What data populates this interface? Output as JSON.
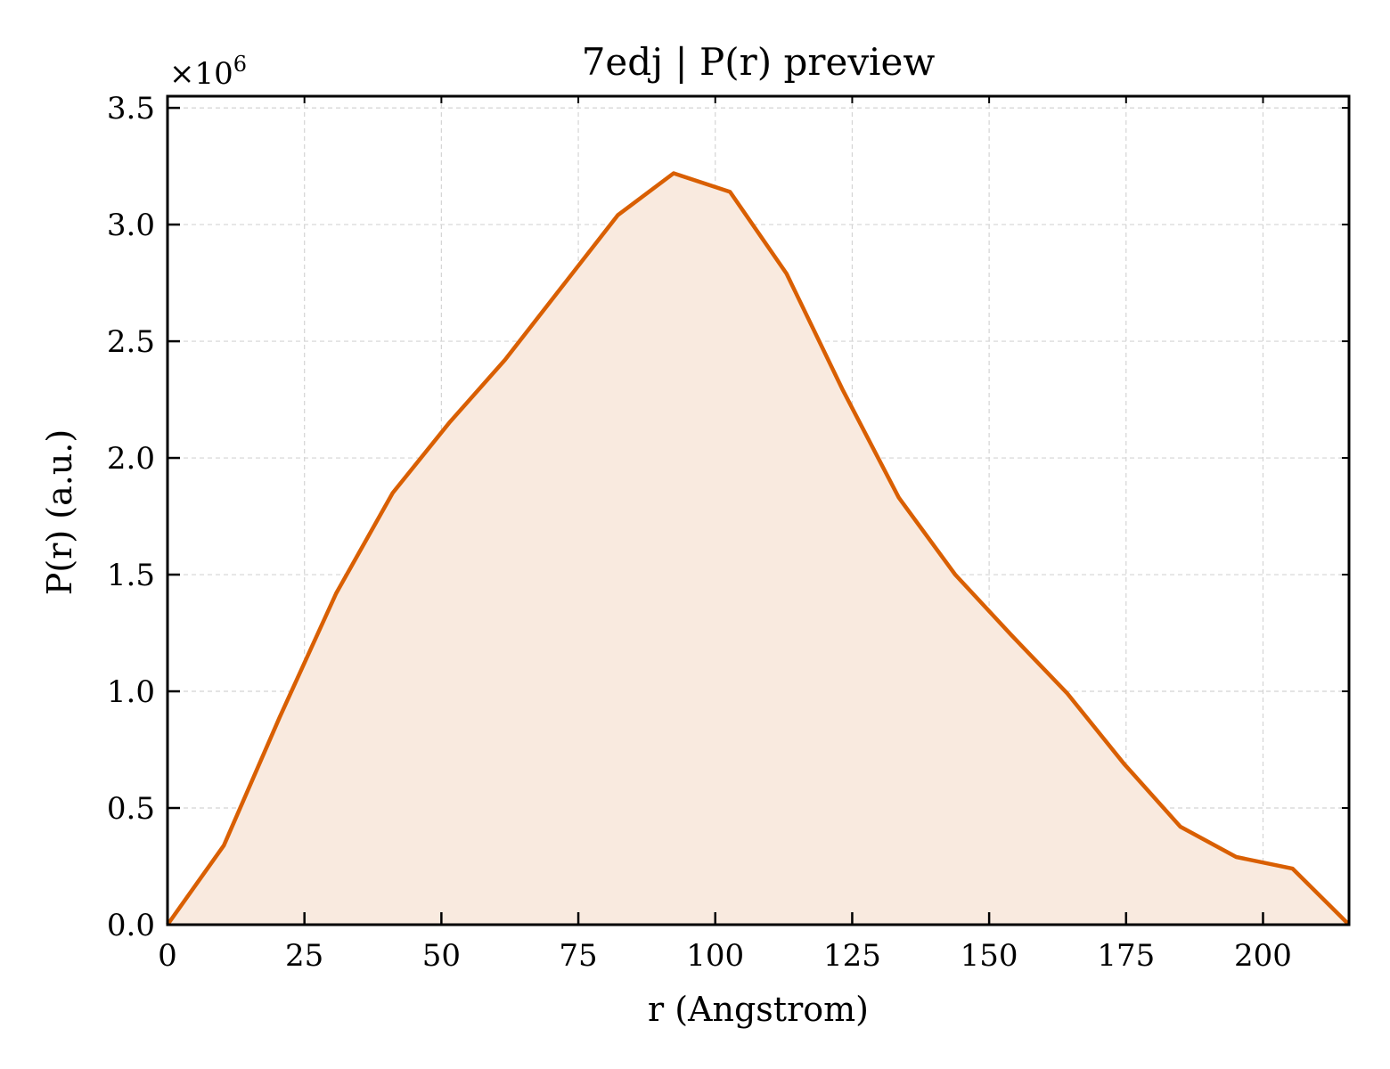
{
  "chart_data": {
    "type": "area",
    "title": "7edj | P(r) preview",
    "xlabel": "r (Angstrom)",
    "ylabel": "P(r) (a.u.)",
    "y_multiplier_label": "×10",
    "y_multiplier_exponent": "6",
    "xlim": [
      0,
      215.7
    ],
    "ylim": [
      0,
      3.55
    ],
    "x_ticks": [
      0,
      25,
      50,
      75,
      100,
      125,
      150,
      175,
      200
    ],
    "x_tick_labels": [
      "0",
      "25",
      "50",
      "75",
      "100",
      "125",
      "150",
      "175",
      "200"
    ],
    "y_ticks": [
      0,
      0.5,
      1,
      1.5,
      2,
      2.5,
      3,
      3.5
    ],
    "y_tick_labels": [
      "0.0",
      "0.5",
      "1.0",
      "1.5",
      "2.0",
      "2.5",
      "3.0",
      "3.5"
    ],
    "grid": true,
    "colors": {
      "line": "#d95f02",
      "fill": "#f9eadf"
    },
    "x": [
      0,
      10.3,
      20.5,
      30.8,
      41.1,
      51.4,
      61.6,
      71.9,
      82.2,
      92.4,
      102.7,
      113.0,
      123.3,
      133.5,
      143.8,
      154.1,
      164.3,
      174.6,
      184.9,
      195.1,
      205.4,
      215.7
    ],
    "values": [
      0.0,
      0.34,
      0.89,
      1.42,
      1.85,
      2.15,
      2.42,
      2.73,
      3.04,
      3.22,
      3.14,
      2.79,
      2.29,
      1.83,
      1.5,
      1.24,
      0.99,
      0.69,
      0.42,
      0.29,
      0.24,
      0.0
    ]
  }
}
